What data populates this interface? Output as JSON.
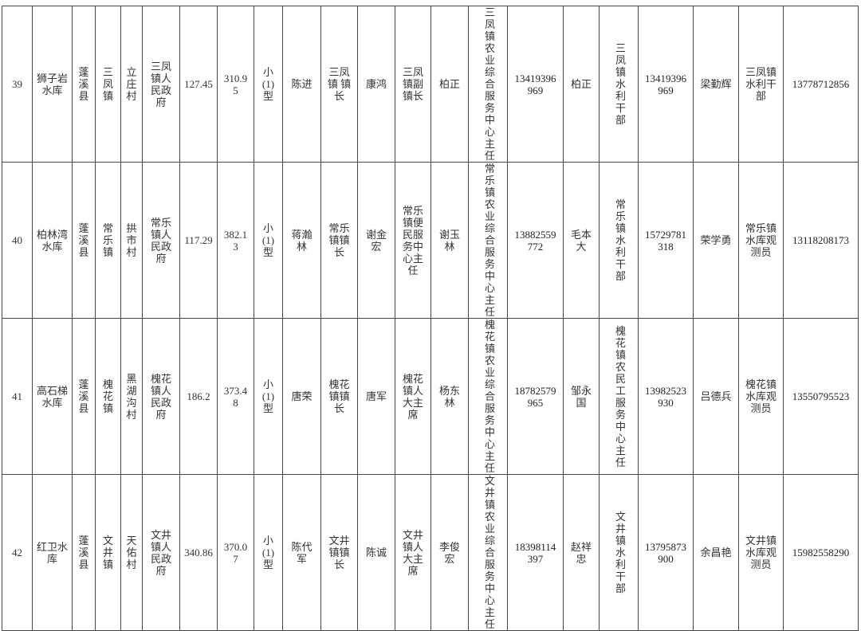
{
  "rows": [
    [
      "39",
      "狮子岩水库",
      "蓬溪县",
      "三凤镇",
      "立庄村",
      "三凤镇人民政府",
      "127.45",
      "310.95",
      "小(1)型",
      "陈进",
      "三凤镇 镇长",
      "康鸿",
      "三凤镇副镇长",
      "柏正",
      "三凤镇农业综合服务中心主任",
      "13419396969",
      "柏正",
      "三凤镇水利干部",
      "13419396969",
      "梁勤辉",
      "三凤镇水利干部",
      "13778712856"
    ],
    [
      "40",
      "柏林湾水库",
      "蓬溪县",
      "常乐镇",
      "拱市村",
      "常乐镇人民政府",
      "117.29",
      "382.13",
      "小(1)型",
      "蒋瀚林",
      "常乐镇镇长",
      "谢金宏",
      "常乐镇便民服务中心主任",
      "谢玉林",
      "常乐镇农业综合服务中心主任",
      "13882559772",
      "毛本大",
      "常乐镇水利干部",
      "15729781318",
      "荣学勇",
      "常乐镇水库观测员",
      "13118208173"
    ],
    [
      "41",
      "高石梯水库",
      "蓬溪县",
      "槐花镇",
      "黑湖沟村",
      "槐花镇人民政府",
      "186.2",
      "373.48",
      "小(1)型",
      "唐荣",
      "槐花镇镇长",
      "唐军",
      "槐花镇人大主席",
      "杨东林",
      "槐花镇农业综合服务中心主任",
      "18782579965",
      "邹永国",
      "槐花镇农民工服务中心主任",
      "13982523930",
      "吕德兵",
      "槐花镇水库观测员",
      "13550795523"
    ],
    [
      "42",
      "红卫水库",
      "蓬溪县",
      "文井镇",
      "天佑村",
      "文井镇人民政府",
      "340.86",
      "370.07",
      "小(1)型",
      "陈代军",
      "文井镇镇长",
      "陈诚",
      "文井镇人大主席",
      "李俊宏",
      "文井镇农业综合服务中心主任",
      "18398114397",
      "赵祥忠",
      "文井镇水利干部",
      "13795873900",
      "余昌艳",
      "文井镇水库观测员",
      "15982558290"
    ]
  ]
}
